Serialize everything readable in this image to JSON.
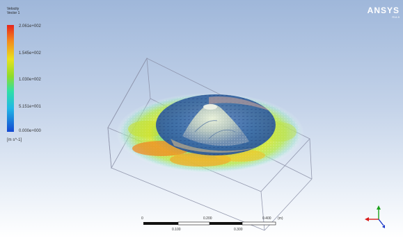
{
  "legend": {
    "title_line1": "Velocity",
    "title_line2": "Vector 1",
    "labels": [
      "2.061e+002",
      "1.545e+002",
      "1.030e+002",
      "5.151e+001",
      "0.000e+000"
    ],
    "unit": "[m s^-1]",
    "colors": [
      "#e6241c",
      "#f38a1d",
      "#e8e21e",
      "#2fe0a6",
      "#1448d2"
    ]
  },
  "logo": {
    "name": "ANSYS",
    "sub": "R14.5"
  },
  "scale": {
    "top_labels": [
      "0",
      "0.200",
      "0.400",
      "(m)"
    ],
    "bottom_labels": [
      "0.100",
      "0.300"
    ]
  },
  "axes": {
    "x_color": "#d81b1b",
    "y_color": "#1aa01a",
    "z_color": "#1a37c8"
  },
  "icons": {
    "logo": "ansys-logo",
    "triad": "axis-triad-icon",
    "scale": "scale-bar"
  }
}
